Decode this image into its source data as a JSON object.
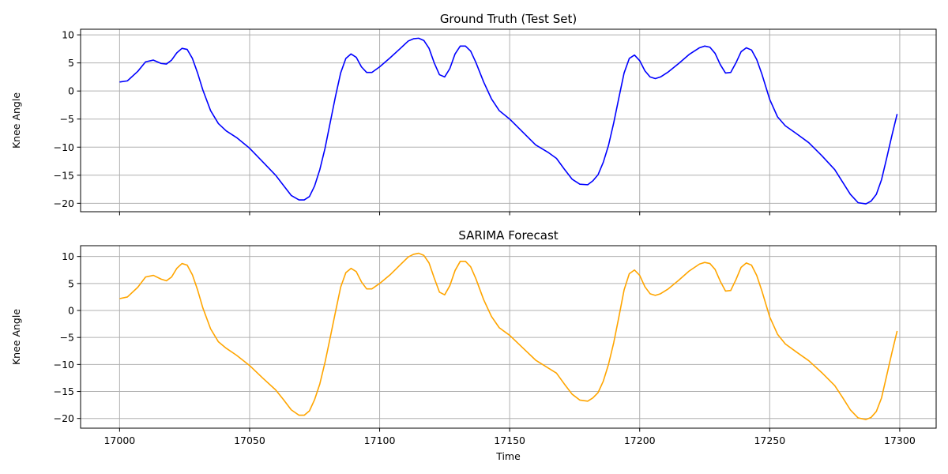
{
  "chart_data": [
    {
      "type": "line",
      "title": "Ground Truth (Test Set)",
      "xlabel": "",
      "ylabel": "Knee Angle",
      "xlim": [
        16985,
        17314
      ],
      "ylim": [
        -21.5,
        11
      ],
      "xticks": [
        17000,
        17050,
        17100,
        17150,
        17200,
        17250,
        17300
      ],
      "yticks": [
        -20,
        -15,
        -10,
        -5,
        0,
        5,
        10
      ],
      "show_x_tick_labels": false,
      "grid": true,
      "series": [
        {
          "color": "#0000ff",
          "x": [
            17000,
            17003,
            17007,
            17010,
            17013,
            17016,
            17018,
            17020,
            17022,
            17024,
            17026,
            17028,
            17030,
            17032,
            17035,
            17038,
            17041,
            17045,
            17050,
            17055,
            17060,
            17063,
            17066,
            17069,
            17071,
            17073,
            17075,
            17077,
            17079,
            17081,
            17083,
            17085,
            17087,
            17089,
            17091,
            17093,
            17095,
            17097,
            17100,
            17104,
            17108,
            17111,
            17113,
            17115,
            17117,
            17119,
            17121,
            17123,
            17125,
            17127,
            17129,
            17131,
            17133,
            17135,
            17137,
            17140,
            17143,
            17146,
            17150,
            17155,
            17160,
            17165,
            17168,
            17171,
            17174,
            17177,
            17180,
            17182,
            17184,
            17186,
            17188,
            17190,
            17192,
            17194,
            17196,
            17198,
            17200,
            17202,
            17204,
            17206,
            17208,
            17211,
            17215,
            17219,
            17223,
            17225,
            17227,
            17229,
            17231,
            17233,
            17235,
            17237,
            17239,
            17241,
            17243,
            17245,
            17247,
            17250,
            17253,
            17256,
            17260,
            17265,
            17270,
            17275,
            17278,
            17281,
            17284,
            17287,
            17289,
            17291,
            17293,
            17295,
            17297,
            17299
          ],
          "y": [
            1.6,
            1.8,
            3.5,
            5.2,
            5.5,
            4.9,
            4.8,
            5.5,
            6.8,
            7.6,
            7.4,
            5.8,
            3.2,
            0.2,
            -3.5,
            -5.8,
            -7.1,
            -8.3,
            -10.2,
            -12.6,
            -15.0,
            -16.8,
            -18.6,
            -19.4,
            -19.4,
            -18.8,
            -16.9,
            -14.0,
            -10.2,
            -5.6,
            -1.0,
            3.2,
            5.8,
            6.6,
            6.0,
            4.3,
            3.3,
            3.3,
            4.3,
            5.9,
            7.6,
            8.9,
            9.3,
            9.4,
            9.0,
            7.6,
            5.0,
            2.9,
            2.5,
            4.0,
            6.6,
            8.0,
            8.0,
            7.1,
            5.1,
            1.6,
            -1.4,
            -3.5,
            -5.0,
            -7.3,
            -9.6,
            -11.0,
            -12.0,
            -13.9,
            -15.7,
            -16.6,
            -16.7,
            -16.0,
            -14.9,
            -12.7,
            -9.7,
            -5.7,
            -1.2,
            3.2,
            5.8,
            6.4,
            5.4,
            3.6,
            2.5,
            2.2,
            2.5,
            3.4,
            4.9,
            6.5,
            7.7,
            8.0,
            7.8,
            6.7,
            4.7,
            3.2,
            3.3,
            5.0,
            7.0,
            7.7,
            7.3,
            5.6,
            3.0,
            -1.5,
            -4.6,
            -6.2,
            -7.5,
            -9.2,
            -11.5,
            -14.0,
            -16.2,
            -18.4,
            -19.9,
            -20.1,
            -19.6,
            -18.4,
            -15.8,
            -11.9,
            -7.9,
            -4.1
          ]
        }
      ]
    },
    {
      "type": "line",
      "title": "SARIMA Forecast",
      "xlabel": "Time",
      "ylabel": "Knee Angle",
      "xlim": [
        16985,
        17314
      ],
      "ylim": [
        -21.8,
        12
      ],
      "xticks": [
        17000,
        17050,
        17100,
        17150,
        17200,
        17250,
        17300
      ],
      "xtick_labels": [
        "17000",
        "17050",
        "17100",
        "17150",
        "17200",
        "17250",
        "17300"
      ],
      "yticks": [
        -20,
        -15,
        -10,
        -5,
        0,
        5,
        10
      ],
      "show_x_tick_labels": true,
      "grid": true,
      "series": [
        {
          "color": "#ffa500",
          "x": [
            17000,
            17003,
            17007,
            17010,
            17013,
            17016,
            17018,
            17020,
            17022,
            17024,
            17026,
            17028,
            17030,
            17032,
            17035,
            17038,
            17041,
            17045,
            17050,
            17055,
            17060,
            17063,
            17066,
            17069,
            17071,
            17073,
            17075,
            17077,
            17079,
            17081,
            17083,
            17085,
            17087,
            17089,
            17091,
            17093,
            17095,
            17097,
            17100,
            17104,
            17108,
            17111,
            17113,
            17115,
            17117,
            17119,
            17121,
            17123,
            17125,
            17127,
            17129,
            17131,
            17133,
            17135,
            17137,
            17140,
            17143,
            17146,
            17150,
            17155,
            17160,
            17165,
            17168,
            17171,
            17174,
            17177,
            17180,
            17182,
            17184,
            17186,
            17188,
            17190,
            17192,
            17194,
            17196,
            17198,
            17200,
            17202,
            17204,
            17206,
            17208,
            17211,
            17215,
            17219,
            17223,
            17225,
            17227,
            17229,
            17231,
            17233,
            17235,
            17237,
            17239,
            17241,
            17243,
            17245,
            17247,
            17250,
            17253,
            17256,
            17260,
            17265,
            17270,
            17275,
            17278,
            17281,
            17284,
            17287,
            17289,
            17291,
            17293,
            17295,
            17297,
            17299
          ],
          "y": [
            2.2,
            2.5,
            4.3,
            6.2,
            6.5,
            5.8,
            5.5,
            6.2,
            7.8,
            8.7,
            8.4,
            6.6,
            3.8,
            0.5,
            -3.4,
            -5.8,
            -7.0,
            -8.3,
            -10.2,
            -12.5,
            -14.7,
            -16.5,
            -18.4,
            -19.4,
            -19.4,
            -18.6,
            -16.5,
            -13.6,
            -9.6,
            -5.0,
            -0.3,
            4.3,
            7.0,
            7.8,
            7.2,
            5.3,
            4.0,
            4.0,
            5.0,
            6.6,
            8.5,
            9.9,
            10.4,
            10.6,
            10.2,
            8.8,
            6.0,
            3.4,
            2.9,
            4.6,
            7.4,
            9.1,
            9.1,
            8.1,
            5.9,
            2.0,
            -1.1,
            -3.2,
            -4.6,
            -6.9,
            -9.2,
            -10.7,
            -11.6,
            -13.6,
            -15.5,
            -16.6,
            -16.8,
            -16.2,
            -15.2,
            -13.1,
            -10.0,
            -6.0,
            -1.2,
            3.8,
            6.8,
            7.5,
            6.5,
            4.4,
            3.1,
            2.8,
            3.1,
            4.0,
            5.6,
            7.3,
            8.6,
            8.9,
            8.7,
            7.6,
            5.4,
            3.6,
            3.7,
            5.7,
            8.0,
            8.8,
            8.4,
            6.5,
            3.6,
            -1.2,
            -4.4,
            -6.2,
            -7.6,
            -9.3,
            -11.5,
            -13.9,
            -16.1,
            -18.4,
            -19.9,
            -20.2,
            -19.8,
            -18.7,
            -16.2,
            -12.0,
            -7.8,
            -3.8
          ]
        }
      ]
    }
  ]
}
